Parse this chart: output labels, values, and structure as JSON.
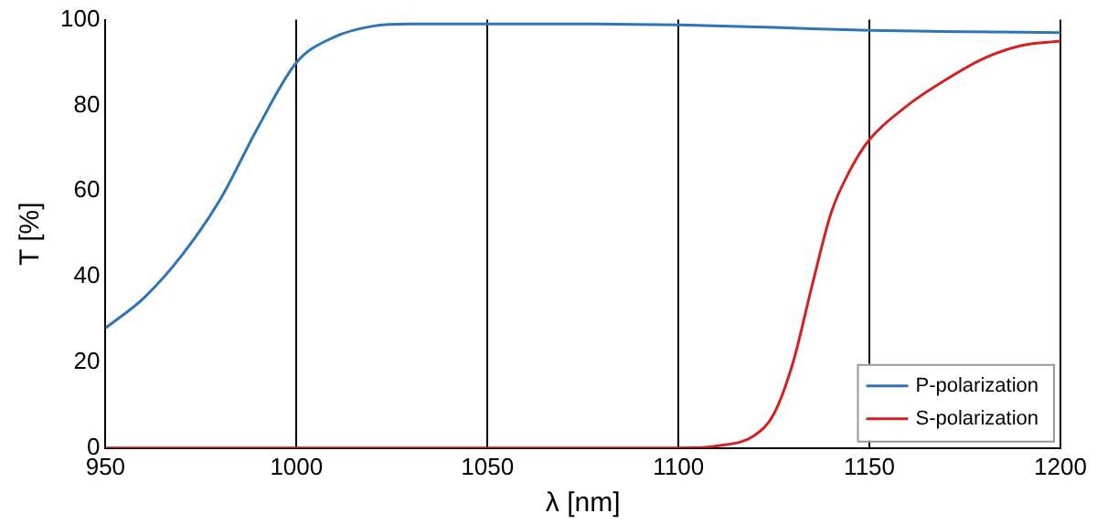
{
  "chart_data": {
    "type": "line",
    "xlabel": "λ [nm]",
    "ylabel": "T [%]",
    "xlim": [
      950,
      1200
    ],
    "xticks": [
      950,
      1000,
      1050,
      1100,
      1150,
      1200
    ],
    "ylim": [
      0,
      100
    ],
    "yticks": [
      0,
      20,
      40,
      60,
      80,
      100
    ],
    "grid": "x",
    "legend": "bottom right",
    "marker": "none",
    "line_style": "solid",
    "series": [
      {
        "name": "P-polarization",
        "color": "#2e75b6",
        "x": [
          950,
          960,
          970,
          980,
          990,
          1000,
          1010,
          1020,
          1030,
          1050,
          1075,
          1100,
          1125,
          1150,
          1175,
          1200
        ],
        "values": [
          28,
          35,
          45,
          58,
          75,
          90,
          96,
          98.5,
          99,
          99,
          99,
          98.8,
          98.2,
          97.5,
          97.2,
          97
        ]
      },
      {
        "name": "S-polarization",
        "color": "#d42020",
        "x": [
          950,
          1000,
          1050,
          1100,
          1110,
          1120,
          1125,
          1130,
          1135,
          1140,
          1145,
          1150,
          1160,
          1170,
          1180,
          1190,
          1200
        ],
        "values": [
          0,
          0,
          0,
          0,
          0.5,
          3,
          8,
          20,
          38,
          55,
          65,
          72,
          80,
          86,
          91,
          94,
          95
        ]
      }
    ]
  }
}
